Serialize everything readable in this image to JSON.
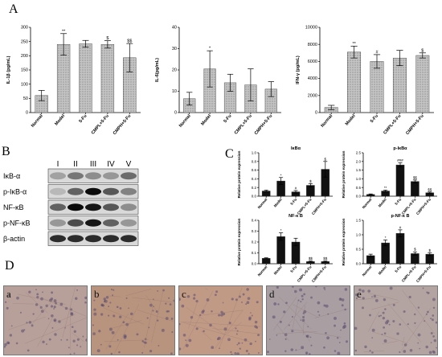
{
  "panels": {
    "A": "A",
    "B": "B",
    "C": "C",
    "D": "D"
  },
  "x_categories": [
    "Normal",
    "Model",
    "5-Fu",
    "CMPL+5-Fu",
    "CMPH+5-Fu"
  ],
  "chart_data": [
    {
      "id": "il1b",
      "type": "bar",
      "ylabel": "IL-1β (pg/mL)",
      "ylim": [
        0,
        300
      ],
      "yticks": [
        "0",
        "50",
        "100",
        "150",
        "200",
        "250",
        "300"
      ],
      "categories": [
        "Normal",
        "Model",
        "5-Fu",
        "CMPL+5-Fu",
        "CMPH+5-Fu"
      ],
      "values": [
        60,
        240,
        242,
        240,
        193
      ],
      "errors": [
        18,
        38,
        12,
        13,
        50
      ],
      "sig": [
        "",
        "**",
        "",
        "$",
        "$$"
      ]
    },
    {
      "id": "il6",
      "type": "bar",
      "ylabel": "IL-6(pg/mL)",
      "ylim": [
        0,
        40
      ],
      "yticks": [
        "0",
        "10",
        "20",
        "30",
        "40"
      ],
      "categories": [
        "Normal",
        "Model",
        "5-Fu",
        "CMPL+5-Fu",
        "CMPH+5-Fu"
      ],
      "values": [
        6.5,
        20.5,
        14,
        13,
        11
      ],
      "errors": [
        3,
        8.5,
        4,
        7.5,
        3.5
      ],
      "sig": [
        "",
        "*",
        "",
        "",
        ""
      ]
    },
    {
      "id": "ifng",
      "type": "bar",
      "ylabel": "IFN-γ (pg/mL)",
      "ylim": [
        0,
        10000
      ],
      "yticks": [
        "0",
        "2000",
        "4000",
        "6000",
        "8000",
        "10000"
      ],
      "categories": [
        "Normal",
        "Model",
        "5-Fu",
        "CMPL+5-Fu",
        "CMPH+5-Fu"
      ],
      "values": [
        600,
        7100,
        6000,
        6400,
        6700
      ],
      "errors": [
        250,
        700,
        800,
        900,
        300
      ],
      "sig": [
        "",
        "**",
        "#",
        "",
        "$"
      ]
    },
    {
      "id": "ikba",
      "type": "bar",
      "title": "IκBα",
      "ylabel": "Relative protein expression",
      "ylim": [
        0,
        1
      ],
      "yticks": [
        "0.0",
        "0.2",
        "0.4",
        "0.6",
        "0.8",
        "1.0"
      ],
      "categories": [
        "Normal",
        "Model",
        "5-Fu",
        "CMPL+5-Fu",
        "CMPH+5-Fu"
      ],
      "values": [
        0.12,
        0.35,
        0.1,
        0.25,
        0.62
      ],
      "errors": [
        0.02,
        0.08,
        0.03,
        0.04,
        0.18
      ],
      "sig": [
        "",
        "*",
        "#",
        "$",
        "$"
      ]
    },
    {
      "id": "pikba",
      "type": "bar",
      "title": "p-IκBα",
      "ylabel": "Relative protein expression",
      "ylim": [
        0,
        2.5
      ],
      "yticks": [
        "0.0",
        "0.5",
        "1.0",
        "1.5",
        "2.0",
        "2.5"
      ],
      "categories": [
        "Normal",
        "Model",
        "5-Fu",
        "CMPL+5-Fu",
        "CMPH+5-Fu"
      ],
      "values": [
        0.1,
        0.3,
        1.8,
        0.85,
        0.2
      ],
      "errors": [
        0.03,
        0.05,
        0.12,
        0.08,
        0.04
      ],
      "sig": [
        "",
        "**",
        "###",
        "$$",
        "$$"
      ]
    },
    {
      "id": "nfkb",
      "type": "bar",
      "title": "NF-κ B",
      "ylabel": "Relative protein expression",
      "ylim": [
        0,
        0.4
      ],
      "yticks": [
        "0.0",
        "0.1",
        "0.2",
        "0.3",
        "0.4"
      ],
      "categories": [
        "Normal",
        "Model",
        "5-Fu",
        "CMPL+5-Fu",
        "CMPH+5-Fu"
      ],
      "values": [
        0.05,
        0.25,
        0.2,
        0.02,
        0.02
      ],
      "errors": [
        0.005,
        0.035,
        0.035,
        0.005,
        0.005
      ],
      "sig": [
        "",
        "*",
        "",
        "$$",
        "$$"
      ]
    },
    {
      "id": "pnfkb",
      "type": "bar",
      "title": "p-NF-κ B",
      "ylabel": "Relative protein expression",
      "ylim": [
        0,
        1.5
      ],
      "yticks": [
        "0.0",
        "0.5",
        "1.0",
        "1.5"
      ],
      "categories": [
        "Normal",
        "Model",
        "5-Fu",
        "CMPL+5-Fu",
        "CMPH+5-Fu"
      ],
      "values": [
        0.28,
        0.72,
        1.05,
        0.35,
        0.33
      ],
      "errors": [
        0.05,
        0.1,
        0.12,
        0.06,
        0.05
      ],
      "sig": [
        "",
        "*",
        "#",
        "$",
        "$"
      ]
    }
  ],
  "western_blot": {
    "lanes": [
      "I",
      "II",
      "III",
      "IV",
      "V"
    ],
    "rows": [
      "IκB-α",
      "p-IκB-α",
      "NF-κB",
      "p-NF-κB",
      "β-actin"
    ]
  },
  "micrographs": [
    "a",
    "b",
    "c",
    "d",
    "e"
  ],
  "colors": {
    "bar": "#b8b8b8",
    "bar_dark": "#111111",
    "blot_bg": "#d9d9d9",
    "tissue": "#b89a8e"
  }
}
